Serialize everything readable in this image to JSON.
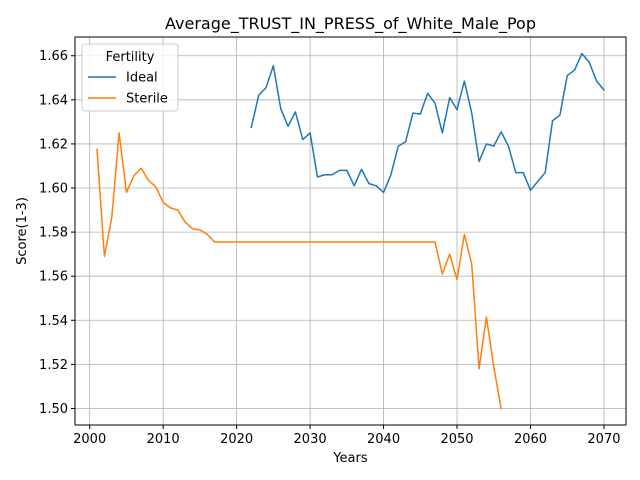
{
  "chart_data": {
    "type": "line",
    "title": "Average_TRUST_IN_PRESS_of_White_Male_Pop",
    "xlabel": "Years",
    "ylabel": "Score(1-3)",
    "xlim": [
      1998,
      2073
    ],
    "ylim": [
      1.4925,
      1.6685
    ],
    "xticks": [
      2000,
      2010,
      2020,
      2030,
      2040,
      2050,
      2060,
      2070
    ],
    "yticks": [
      1.5,
      1.52,
      1.54,
      1.56,
      1.58,
      1.6,
      1.62,
      1.64,
      1.66
    ],
    "ytick_labels": [
      "1.50",
      "1.52",
      "1.54",
      "1.56",
      "1.58",
      "1.60",
      "1.62",
      "1.64",
      "1.66"
    ],
    "grid": true,
    "legend": {
      "title": "Fertility",
      "placement": "top-left"
    },
    "series": [
      {
        "name": "Ideal",
        "color": "#1f77b4",
        "x": [
          2022,
          2023,
          2024,
          2025,
          2026,
          2027,
          2028,
          2029,
          2030,
          2031,
          2032,
          2033,
          2034,
          2035,
          2036,
          2037,
          2038,
          2039,
          2040,
          2041,
          2042,
          2043,
          2044,
          2045,
          2046,
          2047,
          2048,
          2049,
          2050,
          2051,
          2052,
          2053,
          2054,
          2055,
          2056,
          2057,
          2058,
          2059,
          2060,
          2061,
          2062,
          2063,
          2064,
          2065,
          2066,
          2067,
          2068,
          2069,
          2070
        ],
        "values": [
          1.6275,
          1.642,
          1.6455,
          1.6555,
          1.636,
          1.628,
          1.6345,
          1.622,
          1.625,
          1.605,
          1.606,
          1.606,
          1.608,
          1.608,
          1.601,
          1.6085,
          1.602,
          1.601,
          1.598,
          1.606,
          1.619,
          1.621,
          1.634,
          1.6335,
          1.643,
          1.6385,
          1.625,
          1.641,
          1.6355,
          1.6485,
          1.634,
          1.612,
          1.62,
          1.619,
          1.6255,
          1.619,
          1.607,
          1.607,
          1.599,
          1.603,
          1.607,
          1.6305,
          1.633,
          1.651,
          1.6535,
          1.661,
          1.657,
          1.6485,
          1.6445
        ]
      },
      {
        "name": "Sterile",
        "color": "#ff7f0e",
        "x": [
          2001,
          2002,
          2003,
          2004,
          2005,
          2006,
          2007,
          2008,
          2009,
          2010,
          2011,
          2012,
          2013,
          2014,
          2015,
          2016,
          2017,
          2018,
          2019,
          2020,
          2021,
          2022,
          2023,
          2024,
          2025,
          2026,
          2027,
          2028,
          2029,
          2030,
          2031,
          2032,
          2033,
          2034,
          2035,
          2036,
          2037,
          2038,
          2039,
          2040,
          2041,
          2042,
          2043,
          2044,
          2045,
          2046,
          2047,
          2048,
          2049,
          2050,
          2051,
          2052,
          2053,
          2054,
          2055,
          2056
        ],
        "values": [
          1.6175,
          1.569,
          1.5865,
          1.625,
          1.598,
          1.6055,
          1.609,
          1.6035,
          1.6005,
          1.5935,
          1.591,
          1.59,
          1.5845,
          1.5815,
          1.581,
          1.579,
          1.5755,
          1.5755,
          1.5755,
          1.5755,
          1.5755,
          1.5755,
          1.5755,
          1.5755,
          1.5755,
          1.5755,
          1.5755,
          1.5755,
          1.5755,
          1.5755,
          1.5755,
          1.5755,
          1.5755,
          1.5755,
          1.5755,
          1.5755,
          1.5755,
          1.5755,
          1.5755,
          1.5755,
          1.5755,
          1.5755,
          1.5755,
          1.5755,
          1.5755,
          1.5755,
          1.5755,
          1.561,
          1.57,
          1.5585,
          1.579,
          1.5655,
          1.518,
          1.5415,
          1.519,
          1.5
        ]
      }
    ]
  }
}
